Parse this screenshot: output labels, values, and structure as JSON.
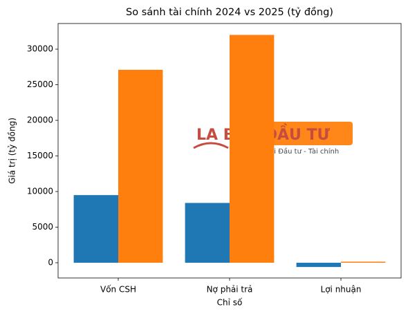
{
  "chart_data": {
    "type": "bar",
    "title": "So sánh tài chính 2024 vs 2025 (tỷ đồng)",
    "x_label": "Chỉ số",
    "y_label": "Giá trị (tỷ đồng)",
    "categories": [
      "Vốn CSH",
      "Nợ phải trả",
      "Lợi nhuận"
    ],
    "series": [
      {
        "color": "#1f77b4",
        "values": [
          9500,
          8400,
          -600
        ]
      },
      {
        "color": "#ff7f0e",
        "values": [
          27100,
          32000,
          150
        ]
      }
    ],
    "ylim": [
      -2140,
      33600
    ],
    "yticks": [
      0,
      5000,
      10000,
      15000,
      20000,
      25000,
      30000
    ],
    "grid": false
  },
  "watermark": {
    "brand": "LA BÀN ĐẦU TƯ",
    "tagline": "Mạng xã hội Đầu tư - Tài chính"
  }
}
